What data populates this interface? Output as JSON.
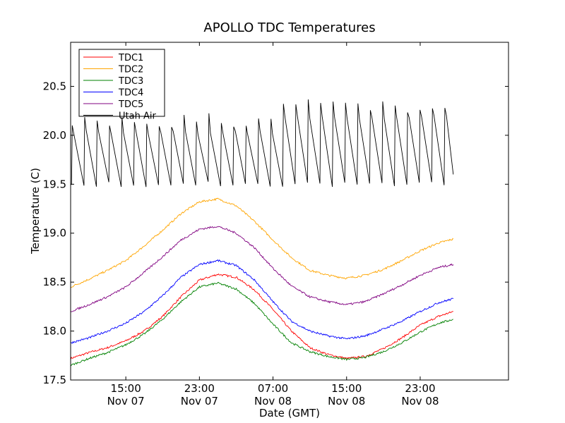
{
  "chart_data": {
    "type": "line",
    "title": "APOLLO TDC Temperatures",
    "xlabel": "Date (GMT)",
    "ylabel": "Temperature (C)",
    "x_unit": "hours since Nov 07 09:00",
    "xlim": [
      0,
      47.6
    ],
    "ylim": [
      17.5,
      20.95
    ],
    "yticks": [
      17.5,
      18.0,
      18.5,
      19.0,
      19.5,
      20.0,
      20.5
    ],
    "ytick_labels": [
      "17.5",
      "18.0",
      "18.5",
      "19.0",
      "19.5",
      "20.0",
      "20.5"
    ],
    "xticks": [
      {
        "x": 6,
        "line1": "15:00",
        "line2": "Nov 07"
      },
      {
        "x": 14,
        "line1": "23:00",
        "line2": "Nov 07"
      },
      {
        "x": 22,
        "line1": "07:00",
        "line2": "Nov 08"
      },
      {
        "x": 30,
        "line1": "15:00",
        "line2": "Nov 08"
      },
      {
        "x": 38,
        "line1": "23:00",
        "line2": "Nov 08"
      }
    ],
    "legend_position": "top-left",
    "series": [
      {
        "name": "TDC1",
        "color": "#ff0000",
        "x": [
          0,
          2,
          4,
          6,
          8,
          10,
          12,
          14,
          16,
          18,
          20,
          22,
          24,
          26,
          28,
          30,
          32,
          34,
          36,
          38,
          40,
          41.6
        ],
        "y": [
          17.72,
          17.78,
          17.83,
          17.9,
          18.0,
          18.15,
          18.35,
          18.52,
          18.58,
          18.55,
          18.42,
          18.22,
          18.0,
          17.83,
          17.76,
          17.72,
          17.74,
          17.82,
          17.93,
          18.06,
          18.15,
          18.2
        ]
      },
      {
        "name": "TDC2",
        "color": "#ffa500",
        "x": [
          0,
          2,
          4,
          6,
          8,
          10,
          12,
          14,
          16,
          18,
          20,
          22,
          24,
          26,
          28,
          30,
          32,
          34,
          36,
          38,
          40,
          41.6
        ],
        "y": [
          18.45,
          18.53,
          18.62,
          18.72,
          18.87,
          19.03,
          19.2,
          19.32,
          19.35,
          19.28,
          19.12,
          18.93,
          18.75,
          18.62,
          18.57,
          18.54,
          18.57,
          18.63,
          18.72,
          18.82,
          18.9,
          18.94
        ]
      },
      {
        "name": "TDC3",
        "color": "#008000",
        "x": [
          0,
          2,
          4,
          6,
          8,
          10,
          12,
          14,
          16,
          18,
          20,
          22,
          24,
          26,
          28,
          30,
          32,
          34,
          36,
          38,
          40,
          41.6
        ],
        "y": [
          17.65,
          17.72,
          17.78,
          17.86,
          17.97,
          18.12,
          18.3,
          18.45,
          18.49,
          18.43,
          18.28,
          18.07,
          17.88,
          17.79,
          17.74,
          17.71,
          17.73,
          17.79,
          17.88,
          17.99,
          18.08,
          18.12
        ]
      },
      {
        "name": "TDC4",
        "color": "#0000ff",
        "x": [
          0,
          2,
          4,
          6,
          8,
          10,
          12,
          14,
          16,
          18,
          20,
          22,
          24,
          26,
          28,
          30,
          32,
          34,
          36,
          38,
          40,
          41.6
        ],
        "y": [
          17.88,
          17.93,
          18.0,
          18.08,
          18.2,
          18.36,
          18.55,
          18.68,
          18.72,
          18.67,
          18.52,
          18.3,
          18.1,
          18.0,
          17.95,
          17.92,
          17.95,
          18.02,
          18.1,
          18.2,
          18.29,
          18.33
        ]
      },
      {
        "name": "TDC5",
        "color": "#800080",
        "x": [
          0,
          2,
          4,
          6,
          8,
          10,
          12,
          14,
          16,
          18,
          20,
          22,
          24,
          26,
          28,
          30,
          32,
          34,
          36,
          38,
          40,
          41.6
        ],
        "y": [
          18.2,
          18.27,
          18.35,
          18.45,
          18.6,
          18.76,
          18.93,
          19.04,
          19.07,
          19.0,
          18.85,
          18.64,
          18.46,
          18.35,
          18.3,
          18.27,
          18.3,
          18.38,
          18.47,
          18.57,
          18.65,
          18.68
        ]
      },
      {
        "name": "Utah Air",
        "color": "#000000",
        "sawtooth": {
          "start": 0.1,
          "end": 41.6,
          "period": 1.35,
          "low": 19.5,
          "high": 20.15,
          "high_late": 20.3
        },
        "y_range_observed": [
          19.38,
          20.42
        ]
      }
    ]
  }
}
